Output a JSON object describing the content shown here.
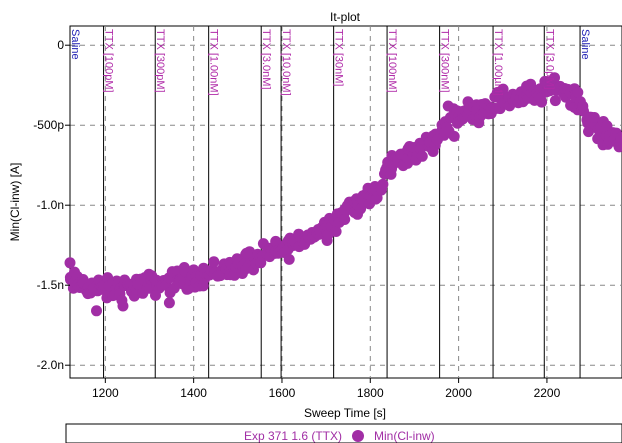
{
  "chart_data": {
    "type": "scatter",
    "title": "It-plot",
    "xlabel": "Sweep Time [s]",
    "ylabel": "Min(Cl-inw) [A]",
    "xlim": [
      1120,
      2370
    ],
    "ylim": [
      -2.08e-09,
      1.2e-10
    ],
    "x_ticks": [
      {
        "value": 1200,
        "label": "1200"
      },
      {
        "value": 1400,
        "label": "1400"
      },
      {
        "value": 1600,
        "label": "1600"
      },
      {
        "value": 1800,
        "label": "1800"
      },
      {
        "value": 2000,
        "label": "2000"
      },
      {
        "value": 2200,
        "label": "2200"
      }
    ],
    "y_ticks": [
      {
        "value": 0,
        "label": "0"
      },
      {
        "value": -5e-10,
        "label": "-500p"
      },
      {
        "value": -1e-09,
        "label": "-1.0n"
      },
      {
        "value": -1.5e-09,
        "label": "-1.5n"
      },
      {
        "value": -2e-09,
        "label": "-2.0n"
      }
    ],
    "grid": true,
    "annotations": [
      {
        "x": 1120,
        "text": "Saline",
        "color": "#1f1fb4"
      },
      {
        "x": 1196,
        "text": "TTX [100pM]",
        "color": "#b02aa8"
      },
      {
        "x": 1313,
        "text": "TTX [300pM]",
        "color": "#b02aa8"
      },
      {
        "x": 1434,
        "text": "TTX [1.00nM]",
        "color": "#b02aa8"
      },
      {
        "x": 1553,
        "text": "TTX [3.0nM]",
        "color": "#b02aa8"
      },
      {
        "x": 1598,
        "text": "TTX [10.0nM]",
        "color": "#b02aa8"
      },
      {
        "x": 1717,
        "text": "TTX [30nM]",
        "color": "#b02aa8"
      },
      {
        "x": 1838,
        "text": "TTX [100nM]",
        "color": "#b02aa8"
      },
      {
        "x": 1957,
        "text": "TTX [300nM]",
        "color": "#b02aa8"
      },
      {
        "x": 2078,
        "text": "TTX [1.00µM]",
        "color": "#b02aa8"
      },
      {
        "x": 2194,
        "text": "TTX [3.0µM]",
        "color": "#b02aa8"
      },
      {
        "x": 2275,
        "text": "Saline",
        "color": "#1f1fb4"
      }
    ],
    "series": [
      {
        "name": "Min(Cl-inw)",
        "color": "#a12ea5",
        "trend": [
          [
            1120,
            -1.48e-09
          ],
          [
            1200,
            -1.53e-09
          ],
          [
            1300,
            -1.5e-09
          ],
          [
            1400,
            -1.45e-09
          ],
          [
            1500,
            -1.38e-09
          ],
          [
            1600,
            -1.28e-09
          ],
          [
            1700,
            -1.14e-09
          ],
          [
            1760,
            -1e-09
          ],
          [
            1820,
            -9.3e-10
          ],
          [
            1840,
            -7.6e-10
          ],
          [
            1900,
            -6.6e-10
          ],
          [
            1950,
            -6e-10
          ],
          [
            1980,
            -4.4e-10
          ],
          [
            2050,
            -4e-10
          ],
          [
            2100,
            -3.4e-10
          ],
          [
            2180,
            -3e-10
          ],
          [
            2230,
            -2.6e-10
          ],
          [
            2270,
            -3.3e-10
          ],
          [
            2300,
            -5e-10
          ],
          [
            2340,
            -5.8e-10
          ],
          [
            2370,
            -5.6e-10
          ]
        ],
        "x_step": 6,
        "scatter_amplitude": 8.5e-11,
        "outliers": [
          [
            1120,
            -1.36e-09
          ],
          [
            1180,
            -1.66e-09
          ],
          [
            1240,
            -1.63e-09
          ],
          [
            1345,
            -1.61e-09
          ],
          [
            1520,
            -1.3e-09
          ],
          [
            1990,
            -5.7e-10
          ]
        ]
      }
    ],
    "legend": {
      "position": "bottom",
      "dataset": "Exp 371 1.6 (TTX)",
      "entry": "Min(Cl-inw)"
    }
  }
}
